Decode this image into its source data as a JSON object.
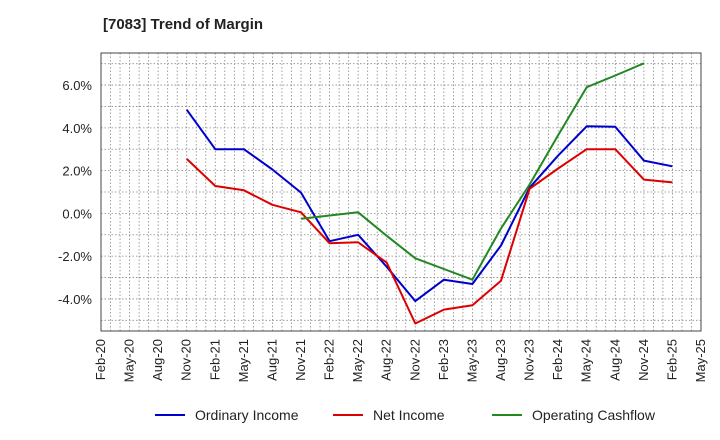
{
  "chart_data": {
    "type": "line",
    "title": "[7083]  Trend of Margin",
    "xlabel": "",
    "ylabel": "",
    "x": [
      "Feb-20",
      "May-20",
      "Aug-20",
      "Nov-20",
      "Feb-21",
      "May-21",
      "Aug-21",
      "Nov-21",
      "Feb-22",
      "May-22",
      "Aug-22",
      "Nov-22",
      "Feb-23",
      "May-23",
      "Aug-23",
      "Nov-23",
      "Feb-24",
      "May-24",
      "Aug-24",
      "Nov-24",
      "Feb-25",
      "May-25"
    ],
    "ylim": [
      -5.5,
      7.5
    ],
    "yticks": [
      -4.0,
      -2.0,
      0.0,
      2.0,
      4.0,
      6.0
    ],
    "ytick_labels": [
      "-4.0%",
      "-2.0%",
      "0.0%",
      "2.0%",
      "4.0%",
      "6.0%"
    ],
    "grid": true,
    "legend_position": "bottom",
    "series": [
      {
        "name": "Ordinary Income",
        "color": "#0000cc",
        "values": [
          null,
          null,
          null,
          4.85,
          3.0,
          3.0,
          2.05,
          0.97,
          -1.3,
          -1.0,
          -2.5,
          -4.1,
          -3.1,
          -3.3,
          -1.5,
          1.2,
          2.7,
          4.07,
          4.05,
          2.47,
          2.2,
          null
        ]
      },
      {
        "name": "Net Income",
        "color": "#dd0000",
        "values": [
          null,
          null,
          null,
          2.55,
          1.28,
          1.08,
          0.4,
          0.05,
          -1.4,
          -1.35,
          -2.3,
          -5.15,
          -4.5,
          -4.3,
          -3.15,
          1.15,
          2.1,
          3.0,
          3.0,
          1.58,
          1.45,
          null
        ]
      },
      {
        "name": "Operating Cashflow",
        "color": "#228822",
        "values": [
          null,
          null,
          null,
          null,
          null,
          null,
          null,
          -0.25,
          -0.1,
          0.05,
          -1.05,
          -2.1,
          -2.6,
          -3.1,
          -0.7,
          1.35,
          3.65,
          5.9,
          6.45,
          7.02,
          null,
          null
        ]
      }
    ]
  }
}
